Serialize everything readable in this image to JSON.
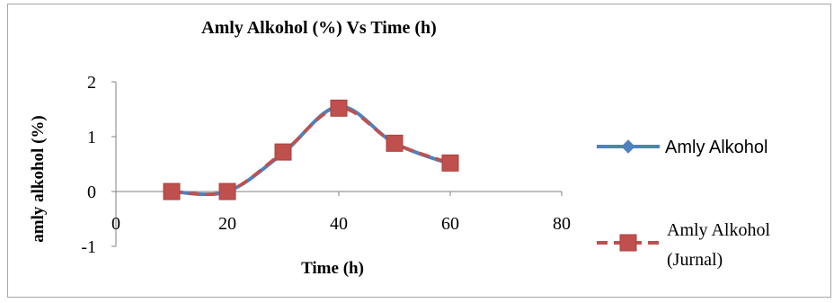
{
  "chart_data": {
    "type": "line",
    "title": "Amly Alkohol (%) Vs Time (h)",
    "xlabel": "Time (h)",
    "ylabel": "amly alkohol (%)",
    "xlim": [
      0,
      80
    ],
    "ylim": [
      -1,
      2
    ],
    "x_ticks": [
      "0",
      "20",
      "40",
      "60",
      "80"
    ],
    "y_ticks": [
      "-1",
      "0",
      "1",
      "2"
    ],
    "grid": false,
    "legend_position": "right",
    "smooth": true,
    "series": [
      {
        "name": "Amly Alkohol",
        "color": "#4f81bd",
        "marker": "diamond",
        "dash": "solid",
        "x": [
          10,
          20,
          30,
          40,
          50,
          60
        ],
        "y": [
          0,
          0,
          0.7,
          1.55,
          0.88,
          0.5
        ]
      },
      {
        "name": "Amly Alkohol (Jurnal)",
        "legend_lines": [
          "Amly  Alkohol",
          "(Jurnal)"
        ],
        "color": "#c0504d",
        "marker": "square",
        "dash": "dashed",
        "x": [
          10,
          20,
          30,
          40,
          50,
          60
        ],
        "y": [
          0,
          0,
          0.72,
          1.52,
          0.88,
          0.52
        ]
      }
    ]
  }
}
